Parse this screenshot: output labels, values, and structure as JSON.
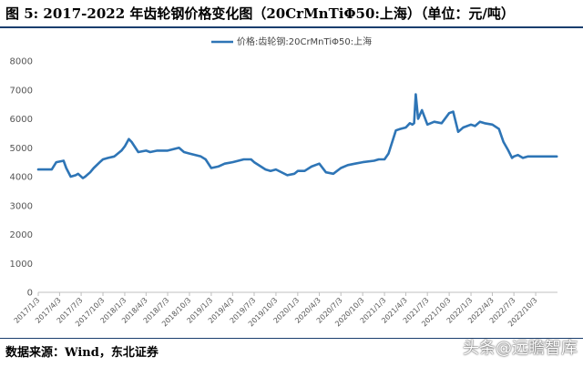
{
  "figure_title": "图  5:   2017-2022 年齿轮钢价格变化图（20CrMnTiΦ50:上海）（单位：元/吨）",
  "source_note": "数据来源：Wind，东北证券",
  "watermark": "头条@远瞻智库",
  "colors": {
    "line": "#2e75b6",
    "rule": "#1a3e6e"
  },
  "chart_data": {
    "type": "line",
    "title": "图  5:   2017-2022 年齿轮钢价格变化图（20CrMnTiΦ50:上海）（单位：元/吨）",
    "xlabel": "",
    "ylabel": "",
    "ylim": [
      0,
      8000
    ],
    "yticks": [
      0,
      1000,
      2000,
      3000,
      4000,
      5000,
      6000,
      7000,
      8000
    ],
    "xlim": [
      "2017-01-03",
      "2023-01-03"
    ],
    "xtick_labels": [
      "2017/1/3",
      "2017/4/3",
      "2017/7/3",
      "2017/10/3",
      "2018/1/3",
      "2018/4/3",
      "2018/7/3",
      "2018/10/3",
      "2019/1/3",
      "2019/4/3",
      "2019/7/3",
      "2019/10/3",
      "2020/1/3",
      "2020/4/3",
      "2020/7/3",
      "2020/10/3",
      "2021/1/3",
      "2021/4/3",
      "2021/7/3",
      "2021/10/3",
      "2022/1/3",
      "2022/4/3",
      "2022/7/3",
      "2022/10/3"
    ],
    "grid": false,
    "legend_position": "top-left",
    "series": [
      {
        "name": "价格:齿轮钢:20CrMnTiΦ50:上海",
        "x": [
          "2017-01-03",
          "2017-03-01",
          "2017-03-20",
          "2017-04-20",
          "2017-05-01",
          "2017-05-20",
          "2017-06-10",
          "2017-06-20",
          "2017-07-10",
          "2017-07-20",
          "2017-08-10",
          "2017-08-25",
          "2017-09-20",
          "2017-10-03",
          "2017-10-25",
          "2017-11-20",
          "2017-12-20",
          "2018-01-03",
          "2018-01-20",
          "2018-02-01",
          "2018-03-01",
          "2018-04-03",
          "2018-04-20",
          "2018-05-20",
          "2018-07-03",
          "2018-08-20",
          "2018-09-10",
          "2018-10-03",
          "2018-11-20",
          "2018-12-10",
          "2019-01-03",
          "2019-02-01",
          "2019-03-01",
          "2019-04-03",
          "2019-05-20",
          "2019-06-20",
          "2019-07-03",
          "2019-08-20",
          "2019-09-10",
          "2019-10-03",
          "2019-11-20",
          "2019-12-20",
          "2020-01-03",
          "2020-02-01",
          "2020-03-01",
          "2020-04-03",
          "2020-05-01",
          "2020-06-01",
          "2020-07-03",
          "2020-08-01",
          "2020-09-01",
          "2020-10-03",
          "2020-11-20",
          "2020-12-10",
          "2021-01-03",
          "2021-01-20",
          "2021-02-20",
          "2021-03-10",
          "2021-04-03",
          "2021-04-20",
          "2021-05-01",
          "2021-05-08",
          "2021-05-15",
          "2021-05-25",
          "2021-06-10",
          "2021-07-03",
          "2021-08-01",
          "2021-09-01",
          "2021-10-03",
          "2021-10-20",
          "2021-11-10",
          "2021-12-01",
          "2022-01-03",
          "2022-01-20",
          "2022-02-10",
          "2022-03-01",
          "2022-04-03",
          "2022-05-01",
          "2022-05-20",
          "2022-06-10",
          "2022-06-25",
          "2022-07-03",
          "2022-07-20",
          "2022-08-10",
          "2022-09-01",
          "2022-10-03",
          "2022-11-20",
          "2022-12-31"
        ],
        "values": [
          4250,
          4250,
          4500,
          4550,
          4300,
          4000,
          4050,
          4100,
          3950,
          4000,
          4150,
          4300,
          4500,
          4600,
          4650,
          4700,
          4900,
          5050,
          5300,
          5200,
          4850,
          4900,
          4850,
          4900,
          4900,
          5000,
          4850,
          4800,
          4700,
          4600,
          4300,
          4350,
          4450,
          4500,
          4600,
          4600,
          4500,
          4250,
          4200,
          4250,
          4050,
          4100,
          4200,
          4200,
          4350,
          4450,
          4150,
          4100,
          4300,
          4400,
          4450,
          4500,
          4550,
          4600,
          4600,
          4800,
          5600,
          5650,
          5700,
          5850,
          5800,
          5850,
          6850,
          6000,
          6300,
          5800,
          5900,
          5850,
          6200,
          6250,
          5550,
          5700,
          5800,
          5750,
          5900,
          5850,
          5800,
          5650,
          5200,
          4900,
          4650,
          4700,
          4750,
          4650,
          4700,
          4700,
          4700,
          4700
        ]
      }
    ]
  }
}
